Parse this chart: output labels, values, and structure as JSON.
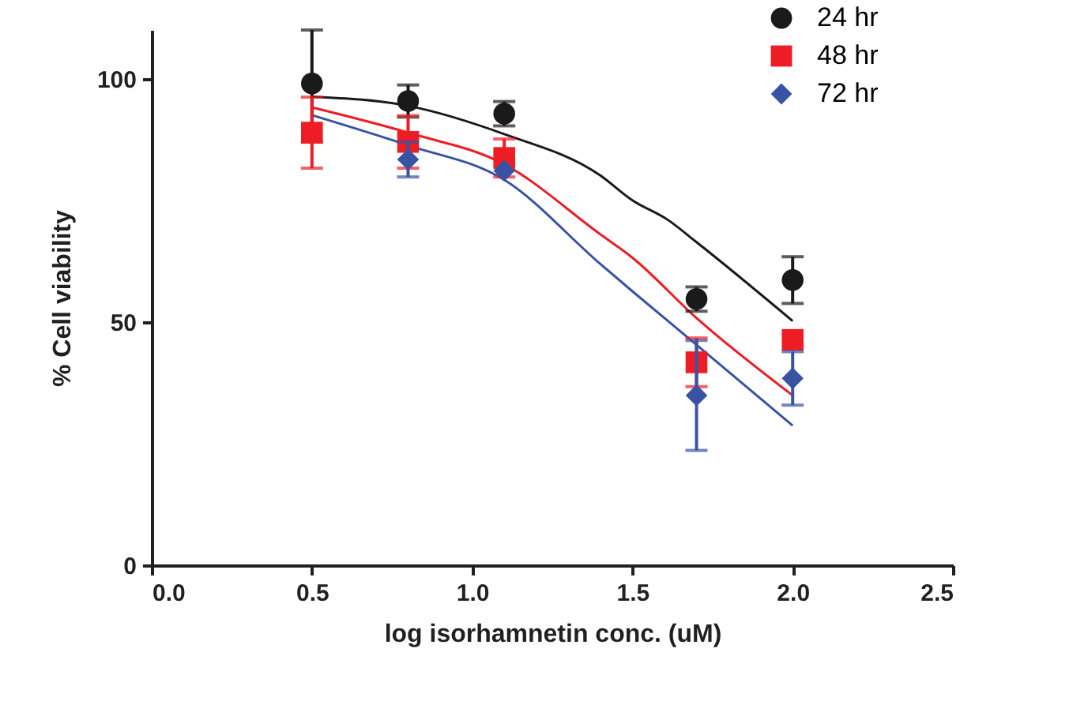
{
  "chart_data": {
    "type": "scatter",
    "xlabel": "log isorhamnetin conc. (uM)",
    "ylabel": "% Cell viability",
    "xlim": [
      0,
      2.5
    ],
    "ylim": [
      0,
      110
    ],
    "xticks": [
      {
        "value": 0,
        "label": "0.0"
      },
      {
        "value": 0.5,
        "label": "0.5"
      },
      {
        "value": 1,
        "label": "1.0"
      },
      {
        "value": 1.5,
        "label": "1.5"
      },
      {
        "value": 2,
        "label": "2.0"
      },
      {
        "value": 2.5,
        "label": "2.5"
      }
    ],
    "yticks": [
      0,
      50,
      100
    ],
    "grid": false,
    "legend": "top right",
    "x": [
      0.5,
      0.8,
      1.1,
      1.7,
      2.0
    ],
    "series": [
      {
        "type": "line",
        "color": "#1a1a1a",
        "x": [
          0.5,
          0.8,
          1.1,
          1.4,
          1.5,
          1.61,
          1.7,
          2.0
        ],
        "values": [
          96.3,
          94.4,
          88.6,
          80.1,
          75,
          71,
          66.4,
          50.2
        ]
      },
      {
        "type": "line",
        "color": "#ee1c24",
        "x": [
          0.5,
          0.8,
          1.1,
          1.4,
          1.5,
          1.7,
          2.0
        ],
        "values": [
          94.1,
          88.9,
          82.4,
          68,
          63.2,
          50.8,
          34.9
        ]
      },
      {
        "type": "line",
        "color": "#3953a4",
        "x": [
          0.5,
          0.8,
          1.1,
          1.4,
          1.5,
          1.7,
          2.0
        ],
        "values": [
          92.5,
          86.3,
          79.2,
          61.9,
          56.3,
          45.3,
          28.7
        ]
      },
      {
        "type": "scatter",
        "name": "24 hr",
        "color": "#1a1a1a",
        "marker": "circle",
        "values": [
          99,
          95.4,
          92.8,
          54.7,
          58.6
        ],
        "errors": [
          [
            87,
            110
          ],
          3.3,
          2.5,
          2.5,
          4.8
        ]
      },
      {
        "type": "scatter",
        "name": "48 hr",
        "color": "#ee1c24",
        "marker": "square",
        "values": [
          88.9,
          87,
          83.7,
          41.7,
          46.3
        ],
        "errors": [
          7.3,
          5.4,
          3.9,
          5,
          null
        ]
      },
      {
        "type": "scatter",
        "name": "72 hr",
        "color": "#3953a4",
        "marker": "diamond",
        "values": [
          null,
          83.4,
          81.1,
          34.9,
          38.4
        ],
        "errors": [
          null,
          3.6,
          null,
          11.3,
          5.5
        ]
      }
    ]
  }
}
